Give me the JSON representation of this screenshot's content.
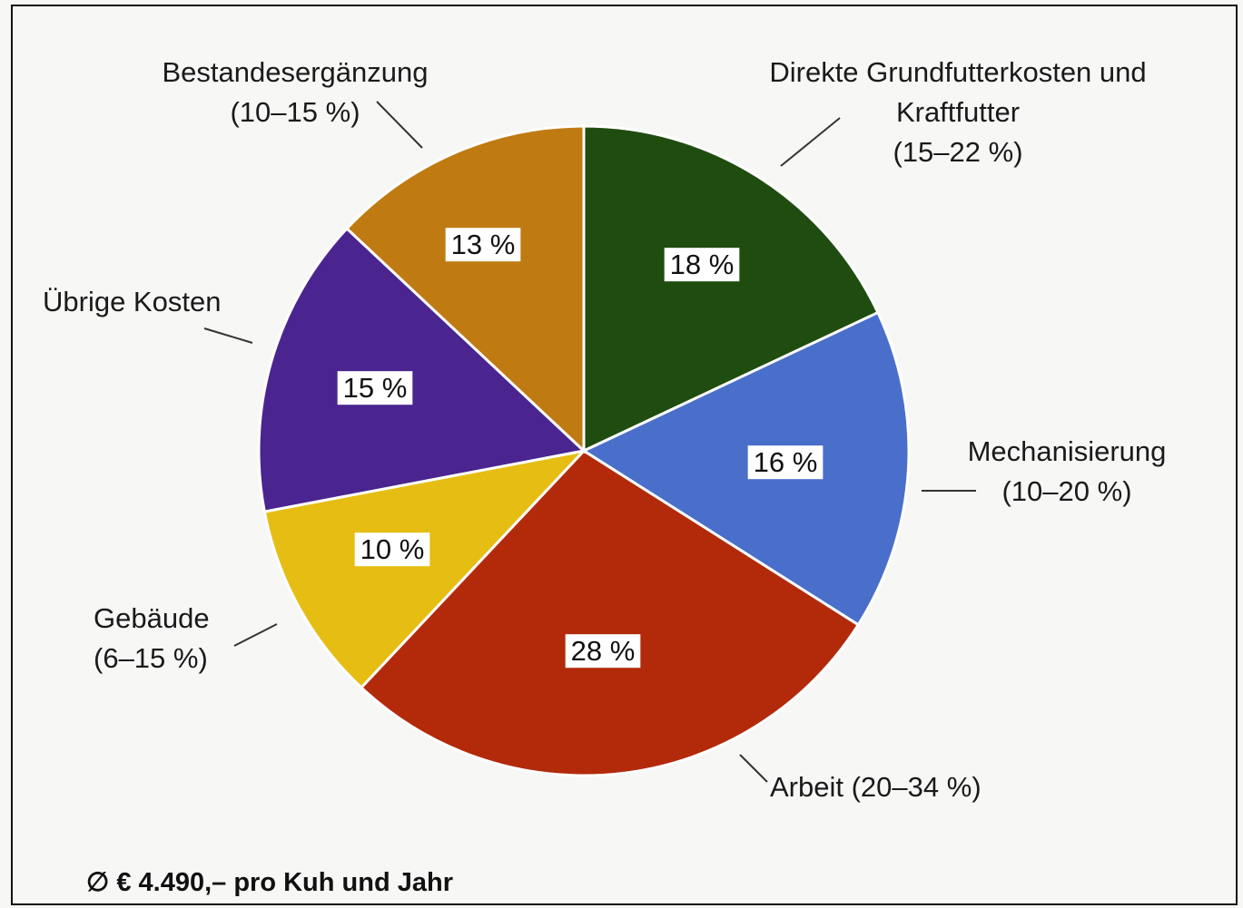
{
  "chart_data": {
    "type": "pie",
    "categories": [
      "Direkte Grundfutterkosten und Kraftfutter",
      "Mechanisierung",
      "Arbeit",
      "Gebäude",
      "Übrige Kosten",
      "Bestandesergänzung"
    ],
    "ranges": [
      "(15–22 %)",
      "(10–20 %)",
      "(20–34 %)",
      "(6–15 %)",
      null,
      "(10–15 %)"
    ],
    "values": [
      18,
      16,
      28,
      10,
      15,
      13
    ],
    "value_labels": [
      "18 %",
      "16 %",
      "28 %",
      "10 %",
      "15 %",
      "13 %"
    ],
    "colors": [
      "#1f4d10",
      "#4a6fcb",
      "#b32a0b",
      "#e6bd12",
      "#4a2590",
      "#bf7a12"
    ],
    "footnote": "∅ € 4.490,– pro Kuh und Jahr"
  }
}
